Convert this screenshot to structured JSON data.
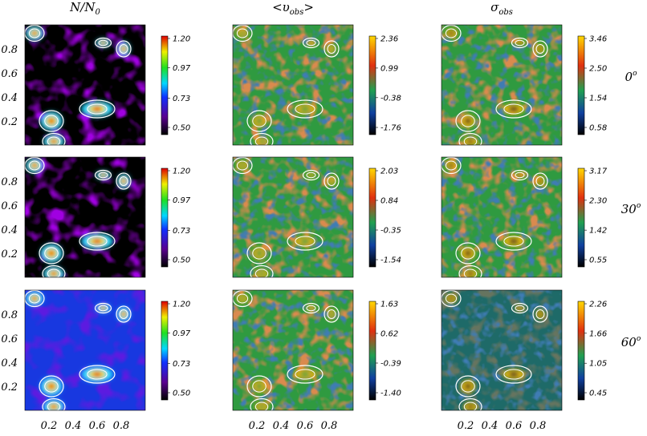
{
  "columns": [
    {
      "title": {
        "main": "N/N",
        "sub": "0"
      }
    },
    {
      "title": {
        "main": "<υ",
        "sub": "obs",
        "end": ">"
      }
    },
    {
      "title": {
        "main": "σ",
        "sub": "obs"
      }
    }
  ],
  "rows": [
    {
      "label": {
        "main": "0",
        "sup": "o"
      }
    },
    {
      "label": {
        "main": "30",
        "sup": "o"
      }
    },
    {
      "label": {
        "main": "60",
        "sup": "o"
      }
    }
  ],
  "colorbars": [
    [
      [
        {
          "value": 1.2,
          "label": "1.20"
        },
        0.97,
        0.73,
        {
          "value": 0.5,
          "label": "0.50"
        }
      ],
      [
        2.36,
        0.99,
        -0.38,
        -1.76
      ],
      [
        3.46,
        {
          "value": 2.5,
          "label": "2.50"
        },
        1.54,
        0.58
      ]
    ],
    [
      [
        {
          "value": 1.2,
          "label": "1.20"
        },
        0.97,
        0.73,
        {
          "value": 0.5,
          "label": "0.50"
        }
      ],
      [
        2.03,
        0.84,
        -0.35,
        -1.54
      ],
      [
        3.17,
        {
          "value": 2.3,
          "label": "2.30"
        },
        1.42,
        0.55
      ]
    ],
    [
      [
        {
          "value": 1.2,
          "label": "1.20"
        },
        0.97,
        0.73,
        {
          "value": 0.5,
          "label": "0.50"
        }
      ],
      [
        1.63,
        0.62,
        -0.39,
        {
          "value": -1.4,
          "label": "-1.40"
        }
      ],
      [
        2.26,
        1.66,
        1.05,
        0.45
      ]
    ]
  ],
  "xticks": [
    0.2,
    0.4,
    0.6,
    0.8
  ],
  "yticks": [
    0.8,
    0.6,
    0.4,
    0.2
  ]
}
